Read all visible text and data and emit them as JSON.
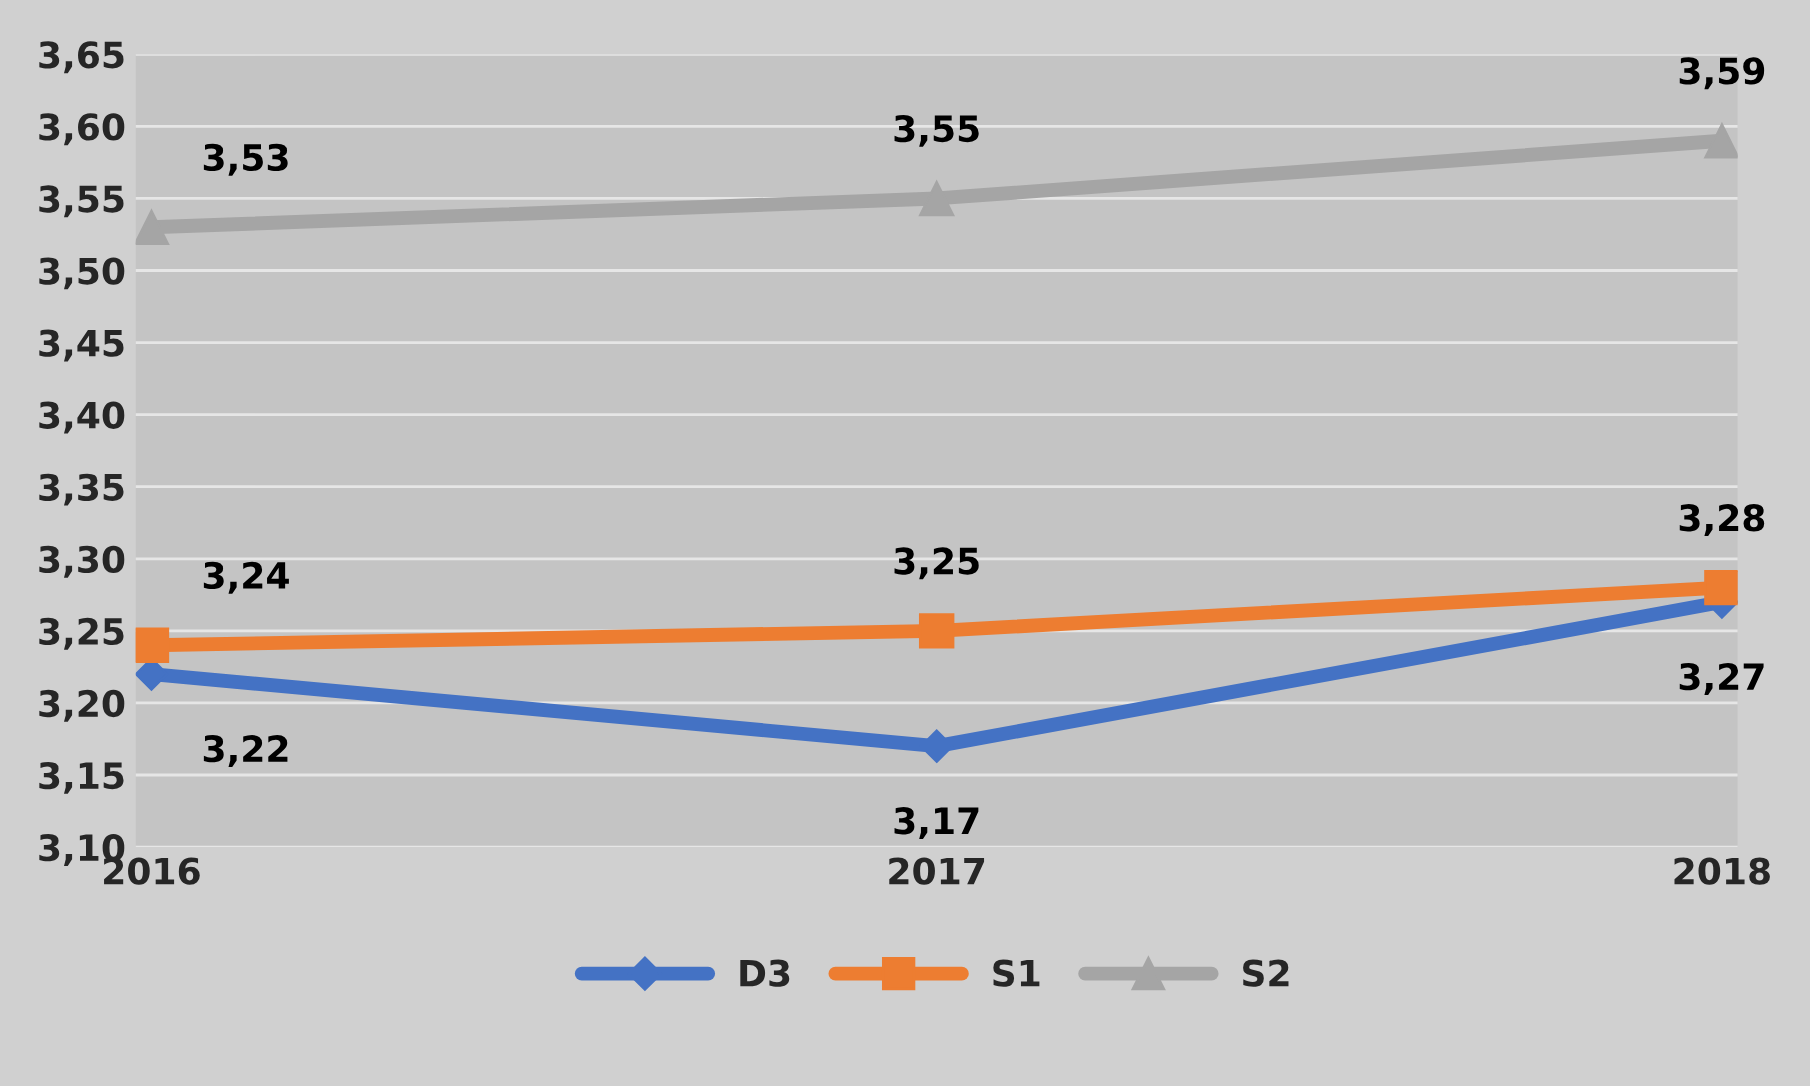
{
  "chart_data": {
    "type": "line",
    "categories": [
      "2016",
      "2017",
      "2018"
    ],
    "series": [
      {
        "name": "D3",
        "color": "#4472c4",
        "marker": "diamond",
        "values": [
          3.22,
          3.17,
          3.27
        ],
        "value_labels": [
          "3,22",
          "3,17",
          "3,27"
        ]
      },
      {
        "name": "S1",
        "color": "#ed7d31",
        "marker": "square",
        "values": [
          3.24,
          3.25,
          3.28
        ],
        "value_labels": [
          "3,24",
          "3,25",
          "3,28"
        ]
      },
      {
        "name": "S2",
        "color": "#a5a5a5",
        "marker": "triangle",
        "values": [
          3.53,
          3.55,
          3.59
        ],
        "value_labels": [
          "3,53",
          "3,55",
          "3,59"
        ]
      }
    ],
    "ylim": [
      3.1,
      3.65
    ],
    "yticks": [
      {
        "value": 3.1,
        "label": "3,10"
      },
      {
        "value": 3.15,
        "label": "3,15"
      },
      {
        "value": 3.2,
        "label": "3,20"
      },
      {
        "value": 3.25,
        "label": "3,25"
      },
      {
        "value": 3.3,
        "label": "3,30"
      },
      {
        "value": 3.35,
        "label": "3,35"
      },
      {
        "value": 3.4,
        "label": "3,40"
      },
      {
        "value": 3.45,
        "label": "3,45"
      },
      {
        "value": 3.5,
        "label": "3,50"
      },
      {
        "value": 3.55,
        "label": "3,55"
      },
      {
        "value": 3.6,
        "label": "3,60"
      },
      {
        "value": 3.65,
        "label": "3,65"
      }
    ],
    "grid": "y",
    "legend": "bottom"
  }
}
